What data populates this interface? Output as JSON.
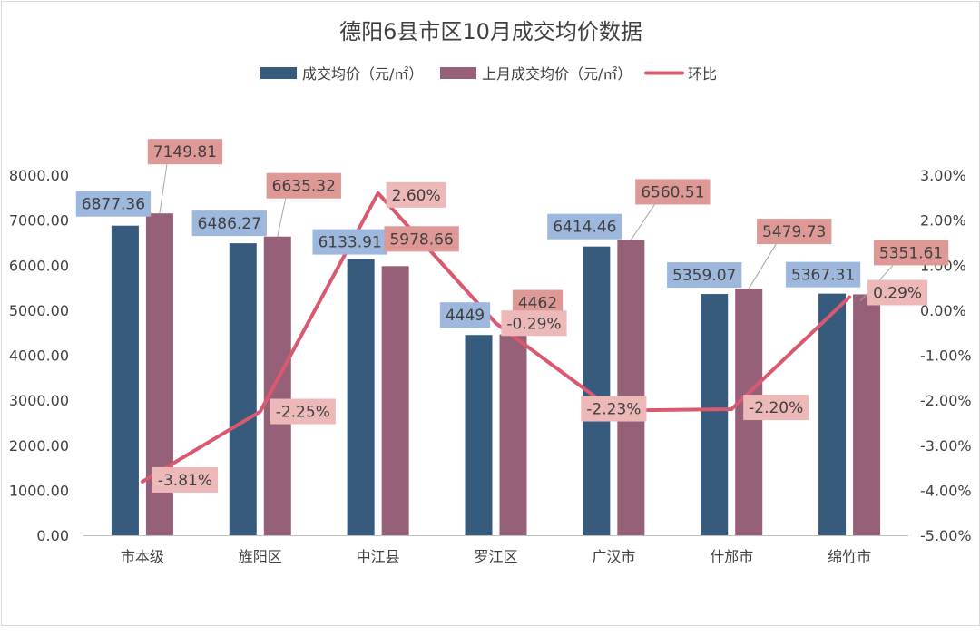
{
  "chart_data": {
    "type": "bar",
    "title": "德阳6县市区10月成交均价数据",
    "categories": [
      "市本级",
      "旌阳区",
      "中江县",
      "罗江区",
      "广汉市",
      "什邡市",
      "绵竹市"
    ],
    "series": [
      {
        "name": "成交均价（元/㎡）",
        "values": [
          6877.36,
          6486.27,
          6133.91,
          4449,
          6414.46,
          5359.07,
          5367.31
        ],
        "labels": [
          "6877.36",
          "6486.27",
          "6133.91",
          "4449",
          "6414.46",
          "5359.07",
          "5367.31"
        ],
        "color": "#375B7D",
        "label_bg": "#9DB8DC",
        "axis": "left"
      },
      {
        "name": "上月成交均价（元/㎡）",
        "values": [
          7149.81,
          6635.32,
          5978.66,
          4462,
          6560.51,
          5479.73,
          5351.61
        ],
        "labels": [
          "7149.81",
          "6635.32",
          "5978.66",
          "4462",
          "6560.51",
          "5479.73",
          "5351.61"
        ],
        "color": "#976079",
        "label_bg": "#DE9896",
        "axis": "left"
      },
      {
        "name": "环比",
        "type": "line",
        "values": [
          -3.81,
          -2.25,
          2.6,
          -0.29,
          -2.23,
          -2.2,
          0.29
        ],
        "labels": [
          "-3.81%",
          "-2.25%",
          "2.60%",
          "-0.29%",
          "-2.23%",
          "-2.20%",
          "0.29%"
        ],
        "color": "#D9596F",
        "label_bg": "#EDB8B8",
        "axis": "right"
      }
    ],
    "y_left": {
      "ylim": [
        0,
        8000
      ],
      "ticks": [
        "0.00",
        "1000.00",
        "2000.00",
        "3000.00",
        "4000.00",
        "5000.00",
        "6000.00",
        "7000.00",
        "8000.00"
      ]
    },
    "y_right": {
      "ylim": [
        -5,
        3
      ],
      "ticks": [
        "-5.00%",
        "-4.00%",
        "-3.00%",
        "-2.00%",
        "-1.00%",
        "0.00%",
        "1.00%",
        "2.00%",
        "3.00%"
      ]
    },
    "grid": false,
    "legend": "top-center"
  }
}
